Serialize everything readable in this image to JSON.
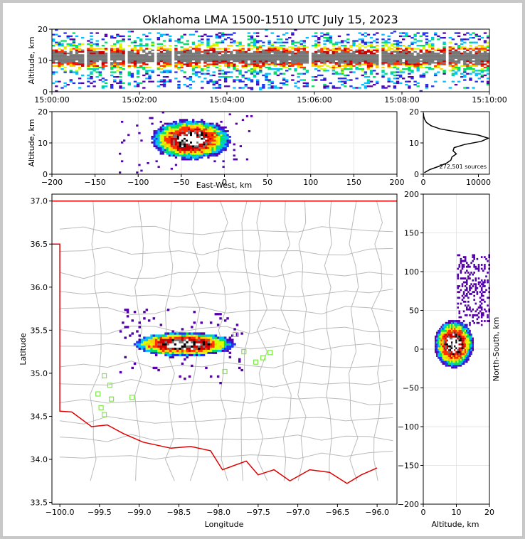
{
  "title": "Oklahoma LMA 1500-1510 UTC July 15, 2023",
  "chart_data": [
    {
      "panel": "time-height",
      "type": "heatmap",
      "ylabel": "Altitude, km",
      "xlim": [
        "15:00:00",
        "15:10:00"
      ],
      "ylim": [
        0,
        20
      ],
      "x_ticks": [
        "15:00:00",
        "15:02:00",
        "15:04:00",
        "15:06:00",
        "15:08:00",
        "15:10:00"
      ],
      "y_ticks": [
        "0",
        "10",
        "20"
      ],
      "source_altitude_band_km": [
        1,
        19
      ],
      "peak_density_altitude_km": 11
    },
    {
      "panel": "east-west-altitude",
      "type": "heatmap",
      "xlabel": "East-West, km",
      "ylabel": "Altitude, km",
      "xlim": [
        -200,
        200
      ],
      "ylim": [
        0,
        20
      ],
      "x_ticks": [
        "−200",
        "−150",
        "−100",
        "−50",
        "0",
        "50",
        "100",
        "150",
        "200"
      ],
      "y_ticks": [
        "0",
        "10",
        "20"
      ],
      "density_core_ew_km": -40,
      "density_core_alt_km": 11
    },
    {
      "panel": "altitude-histogram",
      "type": "line",
      "annotation": "272,501 sources",
      "xlim": [
        0,
        12000
      ],
      "ylim": [
        0,
        20
      ],
      "x_ticks": [
        "0",
        "10000"
      ],
      "y_ticks": [
        "0",
        "10",
        "20"
      ],
      "profile_alt_km": [
        0.5,
        1.5,
        2.5,
        3.5,
        4.5,
        5.5,
        6.5,
        7.5,
        8.5,
        9.5,
        10.5,
        11.5,
        12.5,
        13.5,
        14.5,
        15.5,
        16.5,
        17.5,
        18.5,
        19.5
      ],
      "profile_count": [
        200,
        1200,
        2800,
        4200,
        5000,
        5200,
        6000,
        5400,
        5600,
        7500,
        10500,
        11800,
        10000,
        6200,
        3000,
        1400,
        600,
        250,
        80,
        30
      ]
    },
    {
      "panel": "plan-view",
      "type": "scatter",
      "xlabel": "Longitude",
      "ylabel": "Latitude",
      "xlim": [
        -100.1,
        -95.75
      ],
      "ylim": [
        33.48,
        37.08
      ],
      "x_ticks": [
        "−100.0",
        "−99.5",
        "−99.0",
        "−98.5",
        "−98.0",
        "−97.5",
        "−97.0",
        "−96.5",
        "−96.0"
      ],
      "y_ticks": [
        "33.5",
        "34.0",
        "34.5",
        "35.0",
        "35.5",
        "36.0",
        "36.5",
        "37.0"
      ],
      "density_core_lon": -98.45,
      "density_core_lat": 35.35,
      "lma_stations": [
        {
          "lon": -99.44,
          "lat": 34.97
        },
        {
          "lon": -99.37,
          "lat": 34.86
        },
        {
          "lon": -99.52,
          "lat": 34.76
        },
        {
          "lon": -99.35,
          "lat": 34.7
        },
        {
          "lon": -99.48,
          "lat": 34.6
        },
        {
          "lon": -99.44,
          "lat": 34.52
        },
        {
          "lon": -99.09,
          "lat": 34.72
        },
        {
          "lon": -97.79,
          "lat": 35.45
        },
        {
          "lon": -97.68,
          "lat": 35.25
        },
        {
          "lon": -97.92,
          "lat": 35.02
        },
        {
          "lon": -97.53,
          "lat": 35.13
        },
        {
          "lon": -97.44,
          "lat": 35.18
        },
        {
          "lon": -97.35,
          "lat": 35.24
        }
      ]
    },
    {
      "panel": "altitude-north-south",
      "type": "heatmap",
      "xlabel": "Altitude, km",
      "ylabel": "North-South, km",
      "xlim": [
        0,
        20
      ],
      "ylim": [
        -200,
        200
      ],
      "x_ticks": [
        "0",
        "10",
        "20"
      ],
      "y_ticks": [
        "−200",
        "−150",
        "−100",
        "−50",
        "0",
        "50",
        "100",
        "150",
        "200"
      ],
      "density_core_alt_km": 9,
      "density_core_ns_km": 8
    }
  ],
  "colors": {
    "state_border": "#e00000",
    "county_lines": "#bbbbbb",
    "station_marker": "#7fe84a",
    "density_scale": [
      "#5500aa",
      "#2233ee",
      "#00c0ff",
      "#00e060",
      "#d8ff00",
      "#ffcc00",
      "#ff3300",
      "#cc0000",
      "#777777",
      "#000000",
      "#ffffff"
    ]
  }
}
